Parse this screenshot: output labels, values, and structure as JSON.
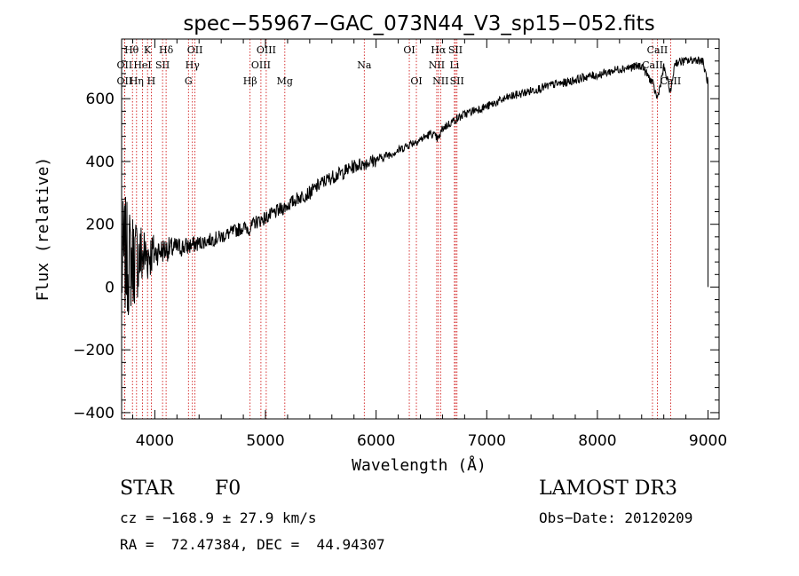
{
  "chart_data": {
    "type": "line",
    "title": "spec−55967−GAC_073N44_V3_sp15−052.fits",
    "xlabel": "Wavelength (Å)",
    "ylabel": "Flux (relative)",
    "xlim": [
      3700,
      9100
    ],
    "ylim": [
      -420,
      790
    ],
    "xticks": [
      4000,
      5000,
      6000,
      7000,
      8000,
      9000
    ],
    "yticks": [
      -400,
      -200,
      0,
      200,
      400,
      600
    ],
    "ytick_labels": [
      "−400",
      "−200",
      "0",
      "200",
      "400",
      "600"
    ],
    "series": [
      {
        "name": "flux",
        "x": [
          3700,
          3730,
          3760,
          3800,
          3850,
          3900,
          3950,
          4000,
          4050,
          4100,
          4150,
          4200,
          4300,
          4400,
          4500,
          4600,
          4700,
          4800,
          4860,
          4900,
          5000,
          5100,
          5200,
          5300,
          5400,
          5500,
          5600,
          5700,
          5800,
          5900,
          6000,
          6100,
          6200,
          6300,
          6400,
          6500,
          6563,
          6600,
          6700,
          6800,
          6900,
          7000,
          7100,
          7200,
          7300,
          7400,
          7500,
          7600,
          7700,
          7800,
          7900,
          8000,
          8100,
          8200,
          8300,
          8400,
          8498,
          8542,
          8600,
          8662,
          8700,
          8800,
          8900,
          8950,
          9000
        ],
        "y": [
          60,
          100,
          80,
          90,
          95,
          100,
          105,
          110,
          115,
          120,
          122,
          125,
          130,
          140,
          150,
          160,
          175,
          190,
          185,
          205,
          220,
          240,
          260,
          285,
          300,
          330,
          350,
          365,
          385,
          395,
          405,
          420,
          435,
          455,
          470,
          490,
          470,
          505,
          530,
          550,
          565,
          575,
          590,
          605,
          615,
          625,
          635,
          645,
          650,
          660,
          670,
          675,
          685,
          695,
          700,
          705,
          650,
          600,
          700,
          620,
          715,
          720,
          725,
          720,
          650
        ]
      }
    ],
    "spectral_lines": [
      {
        "label": "Hθ",
        "wavelength": 3798,
        "row": 0,
        "dx": -1
      },
      {
        "label": "K",
        "wavelength": 3934,
        "row": 0,
        "dx": 0
      },
      {
        "label": "Hδ",
        "wavelength": 4102,
        "row": 0,
        "dx": 0
      },
      {
        "label": "OII",
        "wavelength": 4363,
        "row": 0,
        "dx": 0
      },
      {
        "label": "OIII",
        "wavelength": 5007,
        "row": 0,
        "dx": 0
      },
      {
        "label": "OI",
        "wavelength": 6300,
        "row": 0,
        "dx": 0
      },
      {
        "label": "Hα",
        "wavelength": 6563,
        "row": 0,
        "dx": 0
      },
      {
        "label": "SII",
        "wavelength": 6717,
        "row": 0,
        "dx": 0
      },
      {
        "label": "CaII",
        "wavelength": 8542,
        "row": 0,
        "dx": 0
      },
      {
        "label": "OII",
        "wavelength": 3727,
        "row": 1,
        "dx": 0
      },
      {
        "label": "HeI",
        "wavelength": 3889,
        "row": 1,
        "dx": 0
      },
      {
        "label": "SII",
        "wavelength": 4070,
        "row": 1,
        "dx": 0
      },
      {
        "label": "Hγ",
        "wavelength": 4340,
        "row": 1,
        "dx": 0
      },
      {
        "label": "OIII",
        "wavelength": 4959,
        "row": 1,
        "dx": 0
      },
      {
        "label": "Na",
        "wavelength": 5893,
        "row": 1,
        "dx": 0
      },
      {
        "label": "NII",
        "wavelength": 6548,
        "row": 1,
        "dx": 0
      },
      {
        "label": "Li",
        "wavelength": 6708,
        "row": 1,
        "dx": 0
      },
      {
        "label": "CaII",
        "wavelength": 8498,
        "row": 1,
        "dx": 0
      },
      {
        "label": "OII",
        "wavelength": 3727,
        "row": 2,
        "dx": 0
      },
      {
        "label": "Hη",
        "wavelength": 3835,
        "row": 2,
        "dx": 0
      },
      {
        "label": "H",
        "wavelength": 3968,
        "row": 2,
        "dx": 0
      },
      {
        "label": "G",
        "wavelength": 4304,
        "row": 2,
        "dx": 0
      },
      {
        "label": "Hβ",
        "wavelength": 4861,
        "row": 2,
        "dx": 0
      },
      {
        "label": "Mg",
        "wavelength": 5175,
        "row": 2,
        "dx": 0
      },
      {
        "label": "OI",
        "wavelength": 6364,
        "row": 2,
        "dx": 0
      },
      {
        "label": "NII",
        "wavelength": 6583,
        "row": 2,
        "dx": 0
      },
      {
        "label": "SII",
        "wavelength": 6731,
        "row": 2,
        "dx": 0
      },
      {
        "label": "CaII",
        "wavelength": 8662,
        "row": 2,
        "dx": 0
      }
    ],
    "line_color": "#000000",
    "marker_color": "#cc0000"
  },
  "info": {
    "class": "STAR",
    "subclass": "F0",
    "survey": "LAMOST DR3",
    "cz": "cz = −168.9 ± 27.9 km/s",
    "obs_date": "Obs−Date: 20120209",
    "coords": "RA =  72.47384, DEC =  44.94307"
  }
}
